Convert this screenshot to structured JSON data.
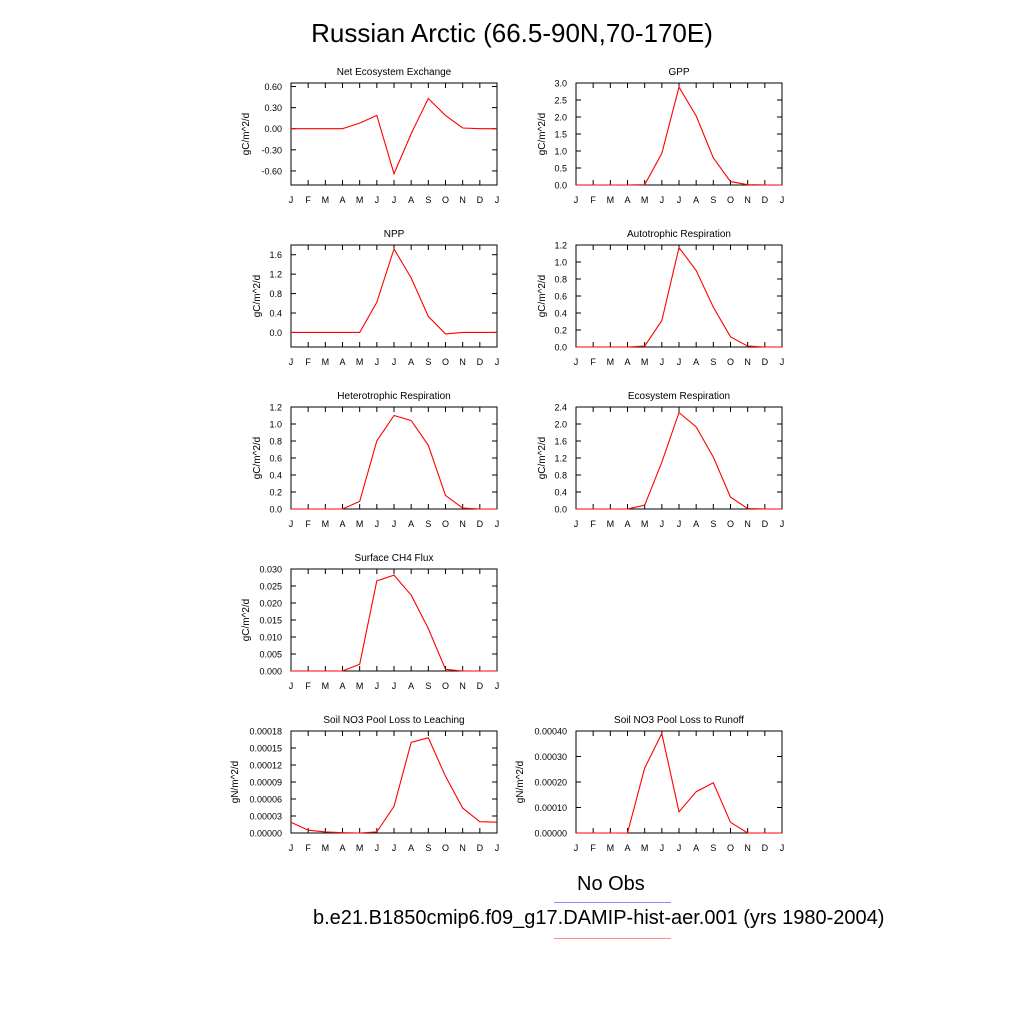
{
  "page_title": "Russian Arctic (66.5-90N,70-170E)",
  "legend": {
    "obs_label": "No Obs",
    "obs_color": "#8a8aff",
    "case_label": "b.e21.B1850cmip6.f09_g17.DAMIP-hist-aer.001 (yrs 1980-2004)",
    "case_color": "#ff0000"
  },
  "chart_data": [
    {
      "type": "line",
      "title": "Net Ecosystem Exchange",
      "ylabel": "gC/m^2/d",
      "categories": [
        "J",
        "F",
        "M",
        "A",
        "M",
        "J",
        "J",
        "A",
        "S",
        "O",
        "N",
        "D",
        "J"
      ],
      "ylim": [
        -0.8,
        0.65
      ],
      "yticks": [
        "0.60",
        "0.30",
        "0.00",
        "-0.30",
        "-0.60"
      ],
      "ytick_values": [
        0.6,
        0.3,
        0.0,
        -0.3,
        -0.6
      ],
      "series": [
        {
          "color": "#ff0000",
          "values": [
            0.0,
            0.0,
            0.0,
            0.0,
            0.08,
            0.19,
            -0.64,
            -0.07,
            0.43,
            0.19,
            0.01,
            0.0,
            0.0
          ]
        }
      ]
    },
    {
      "type": "line",
      "title": "GPP",
      "ylabel": "gC/m^2/d",
      "categories": [
        "J",
        "F",
        "M",
        "A",
        "M",
        "J",
        "J",
        "A",
        "S",
        "O",
        "N",
        "D",
        "J"
      ],
      "ylim": [
        0,
        3.0
      ],
      "yticks": [
        "3.0",
        "2.5",
        "2.0",
        "1.5",
        "1.0",
        "0.5",
        "0.0"
      ],
      "ytick_values": [
        3.0,
        2.5,
        2.0,
        1.5,
        1.0,
        0.5,
        0.0
      ],
      "series": [
        {
          "color": "#ff0000",
          "values": [
            0.0,
            0.0,
            0.0,
            0.0,
            0.01,
            0.93,
            2.88,
            2.03,
            0.8,
            0.1,
            0.01,
            0.0,
            0.0
          ]
        }
      ]
    },
    {
      "type": "line",
      "title": "NPP",
      "ylabel": "gC/m^2/d",
      "categories": [
        "J",
        "F",
        "M",
        "A",
        "M",
        "J",
        "J",
        "A",
        "S",
        "O",
        "N",
        "D",
        "J"
      ],
      "ylim": [
        -0.3,
        1.8
      ],
      "yticks": [
        "1.6",
        "1.2",
        "0.8",
        "0.4",
        "0.0"
      ],
      "ytick_values": [
        1.6,
        1.2,
        0.8,
        0.4,
        0.0
      ],
      "series": [
        {
          "color": "#ff0000",
          "values": [
            0.0,
            0.0,
            0.0,
            0.0,
            0.0,
            0.62,
            1.72,
            1.12,
            0.33,
            -0.03,
            0.0,
            0.0,
            0.0
          ]
        }
      ]
    },
    {
      "type": "line",
      "title": "Autotrophic Respiration",
      "ylabel": "gC/m^2/d",
      "categories": [
        "J",
        "F",
        "M",
        "A",
        "M",
        "J",
        "J",
        "A",
        "S",
        "O",
        "N",
        "D",
        "J"
      ],
      "ylim": [
        0,
        1.2
      ],
      "yticks": [
        "1.2",
        "1.0",
        "0.8",
        "0.6",
        "0.4",
        "0.2",
        "0.0"
      ],
      "ytick_values": [
        1.2,
        1.0,
        0.8,
        0.6,
        0.4,
        0.2,
        0.0
      ],
      "series": [
        {
          "color": "#ff0000",
          "values": [
            0.0,
            0.0,
            0.0,
            0.0,
            0.01,
            0.31,
            1.17,
            0.9,
            0.47,
            0.12,
            0.01,
            0.0,
            0.0
          ]
        }
      ]
    },
    {
      "type": "line",
      "title": "Heterotrophic Respiration",
      "ylabel": "gC/m^2/d",
      "categories": [
        "J",
        "F",
        "M",
        "A",
        "M",
        "J",
        "J",
        "A",
        "S",
        "O",
        "N",
        "D",
        "J"
      ],
      "ylim": [
        0,
        1.2
      ],
      "yticks": [
        "1.2",
        "1.0",
        "0.8",
        "0.6",
        "0.4",
        "0.2",
        "0.0"
      ],
      "ytick_values": [
        1.2,
        1.0,
        0.8,
        0.6,
        0.4,
        0.2,
        0.0
      ],
      "series": [
        {
          "color": "#ff0000",
          "values": [
            0.0,
            0.0,
            0.0,
            0.0,
            0.09,
            0.8,
            1.1,
            1.04,
            0.75,
            0.16,
            0.01,
            0.0,
            0.0
          ]
        }
      ]
    },
    {
      "type": "line",
      "title": "Ecosystem Respiration",
      "ylabel": "gC/m^2/d",
      "categories": [
        "J",
        "F",
        "M",
        "A",
        "M",
        "J",
        "J",
        "A",
        "S",
        "O",
        "N",
        "D",
        "J"
      ],
      "ylim": [
        0,
        2.4
      ],
      "yticks": [
        "2.4",
        "2.0",
        "1.6",
        "1.2",
        "0.8",
        "0.4",
        "0.0"
      ],
      "ytick_values": [
        2.4,
        2.0,
        1.6,
        1.2,
        0.8,
        0.4,
        0.0
      ],
      "series": [
        {
          "color": "#ff0000",
          "values": [
            0.0,
            0.0,
            0.0,
            0.0,
            0.09,
            1.1,
            2.27,
            1.93,
            1.22,
            0.28,
            0.01,
            0.0,
            0.0
          ]
        }
      ]
    },
    {
      "type": "line",
      "title": "Surface CH4 Flux",
      "ylabel": "gC/m^2/d",
      "categories": [
        "J",
        "F",
        "M",
        "A",
        "M",
        "J",
        "J",
        "A",
        "S",
        "O",
        "N",
        "D",
        "J"
      ],
      "ylim": [
        0,
        0.03
      ],
      "yticks": [
        "0.030",
        "0.025",
        "0.020",
        "0.015",
        "0.010",
        "0.005",
        "0.000"
      ],
      "ytick_values": [
        0.03,
        0.025,
        0.02,
        0.015,
        0.01,
        0.005,
        0.0
      ],
      "series": [
        {
          "color": "#ff0000",
          "values": [
            0.0,
            0.0,
            0.0,
            0.0,
            0.002,
            0.0265,
            0.0282,
            0.0223,
            0.0125,
            0.0005,
            0.0,
            0.0,
            0.0
          ]
        }
      ]
    },
    {
      "type": "line",
      "title": "Soil NO3 Pool Loss to Leaching",
      "ylabel": "gN/m^2/d",
      "categories": [
        "J",
        "F",
        "M",
        "A",
        "M",
        "J",
        "J",
        "A",
        "S",
        "O",
        "N",
        "D",
        "J"
      ],
      "ylim": [
        0,
        0.00018
      ],
      "yticks": [
        "0.00018",
        "0.00015",
        "0.00012",
        "0.00009",
        "0.00006",
        "0.00003",
        "0.00000"
      ],
      "ytick_values": [
        0.00018,
        0.00015,
        0.00012,
        9e-05,
        6e-05,
        3e-05,
        0.0
      ],
      "series": [
        {
          "color": "#ff0000",
          "values": [
            1.9e-05,
            5e-06,
            2e-06,
            5e-07,
            0.0,
            2e-06,
            4.7e-05,
            0.00016,
            0.000168,
            0.0001,
            4.4e-05,
            2e-05,
            1.9e-05
          ]
        }
      ]
    },
    {
      "type": "line",
      "title": "Soil NO3 Pool Loss to Runoff",
      "ylabel": "gN/m^2/d",
      "categories": [
        "J",
        "F",
        "M",
        "A",
        "M",
        "J",
        "J",
        "A",
        "S",
        "O",
        "N",
        "D",
        "J"
      ],
      "ylim": [
        0,
        0.0004
      ],
      "yticks": [
        "0.00040",
        "0.00030",
        "0.00020",
        "0.00010",
        "0.00000"
      ],
      "ytick_values": [
        0.0004,
        0.0003,
        0.0002,
        0.0001,
        0.0
      ],
      "series": [
        {
          "color": "#ff0000",
          "values": [
            0.0,
            0.0,
            0.0,
            0.0,
            0.000255,
            0.00039,
            8.3e-05,
            0.000162,
            0.000197,
            4.2e-05,
            0.0,
            0.0,
            0.0
          ]
        }
      ]
    }
  ]
}
